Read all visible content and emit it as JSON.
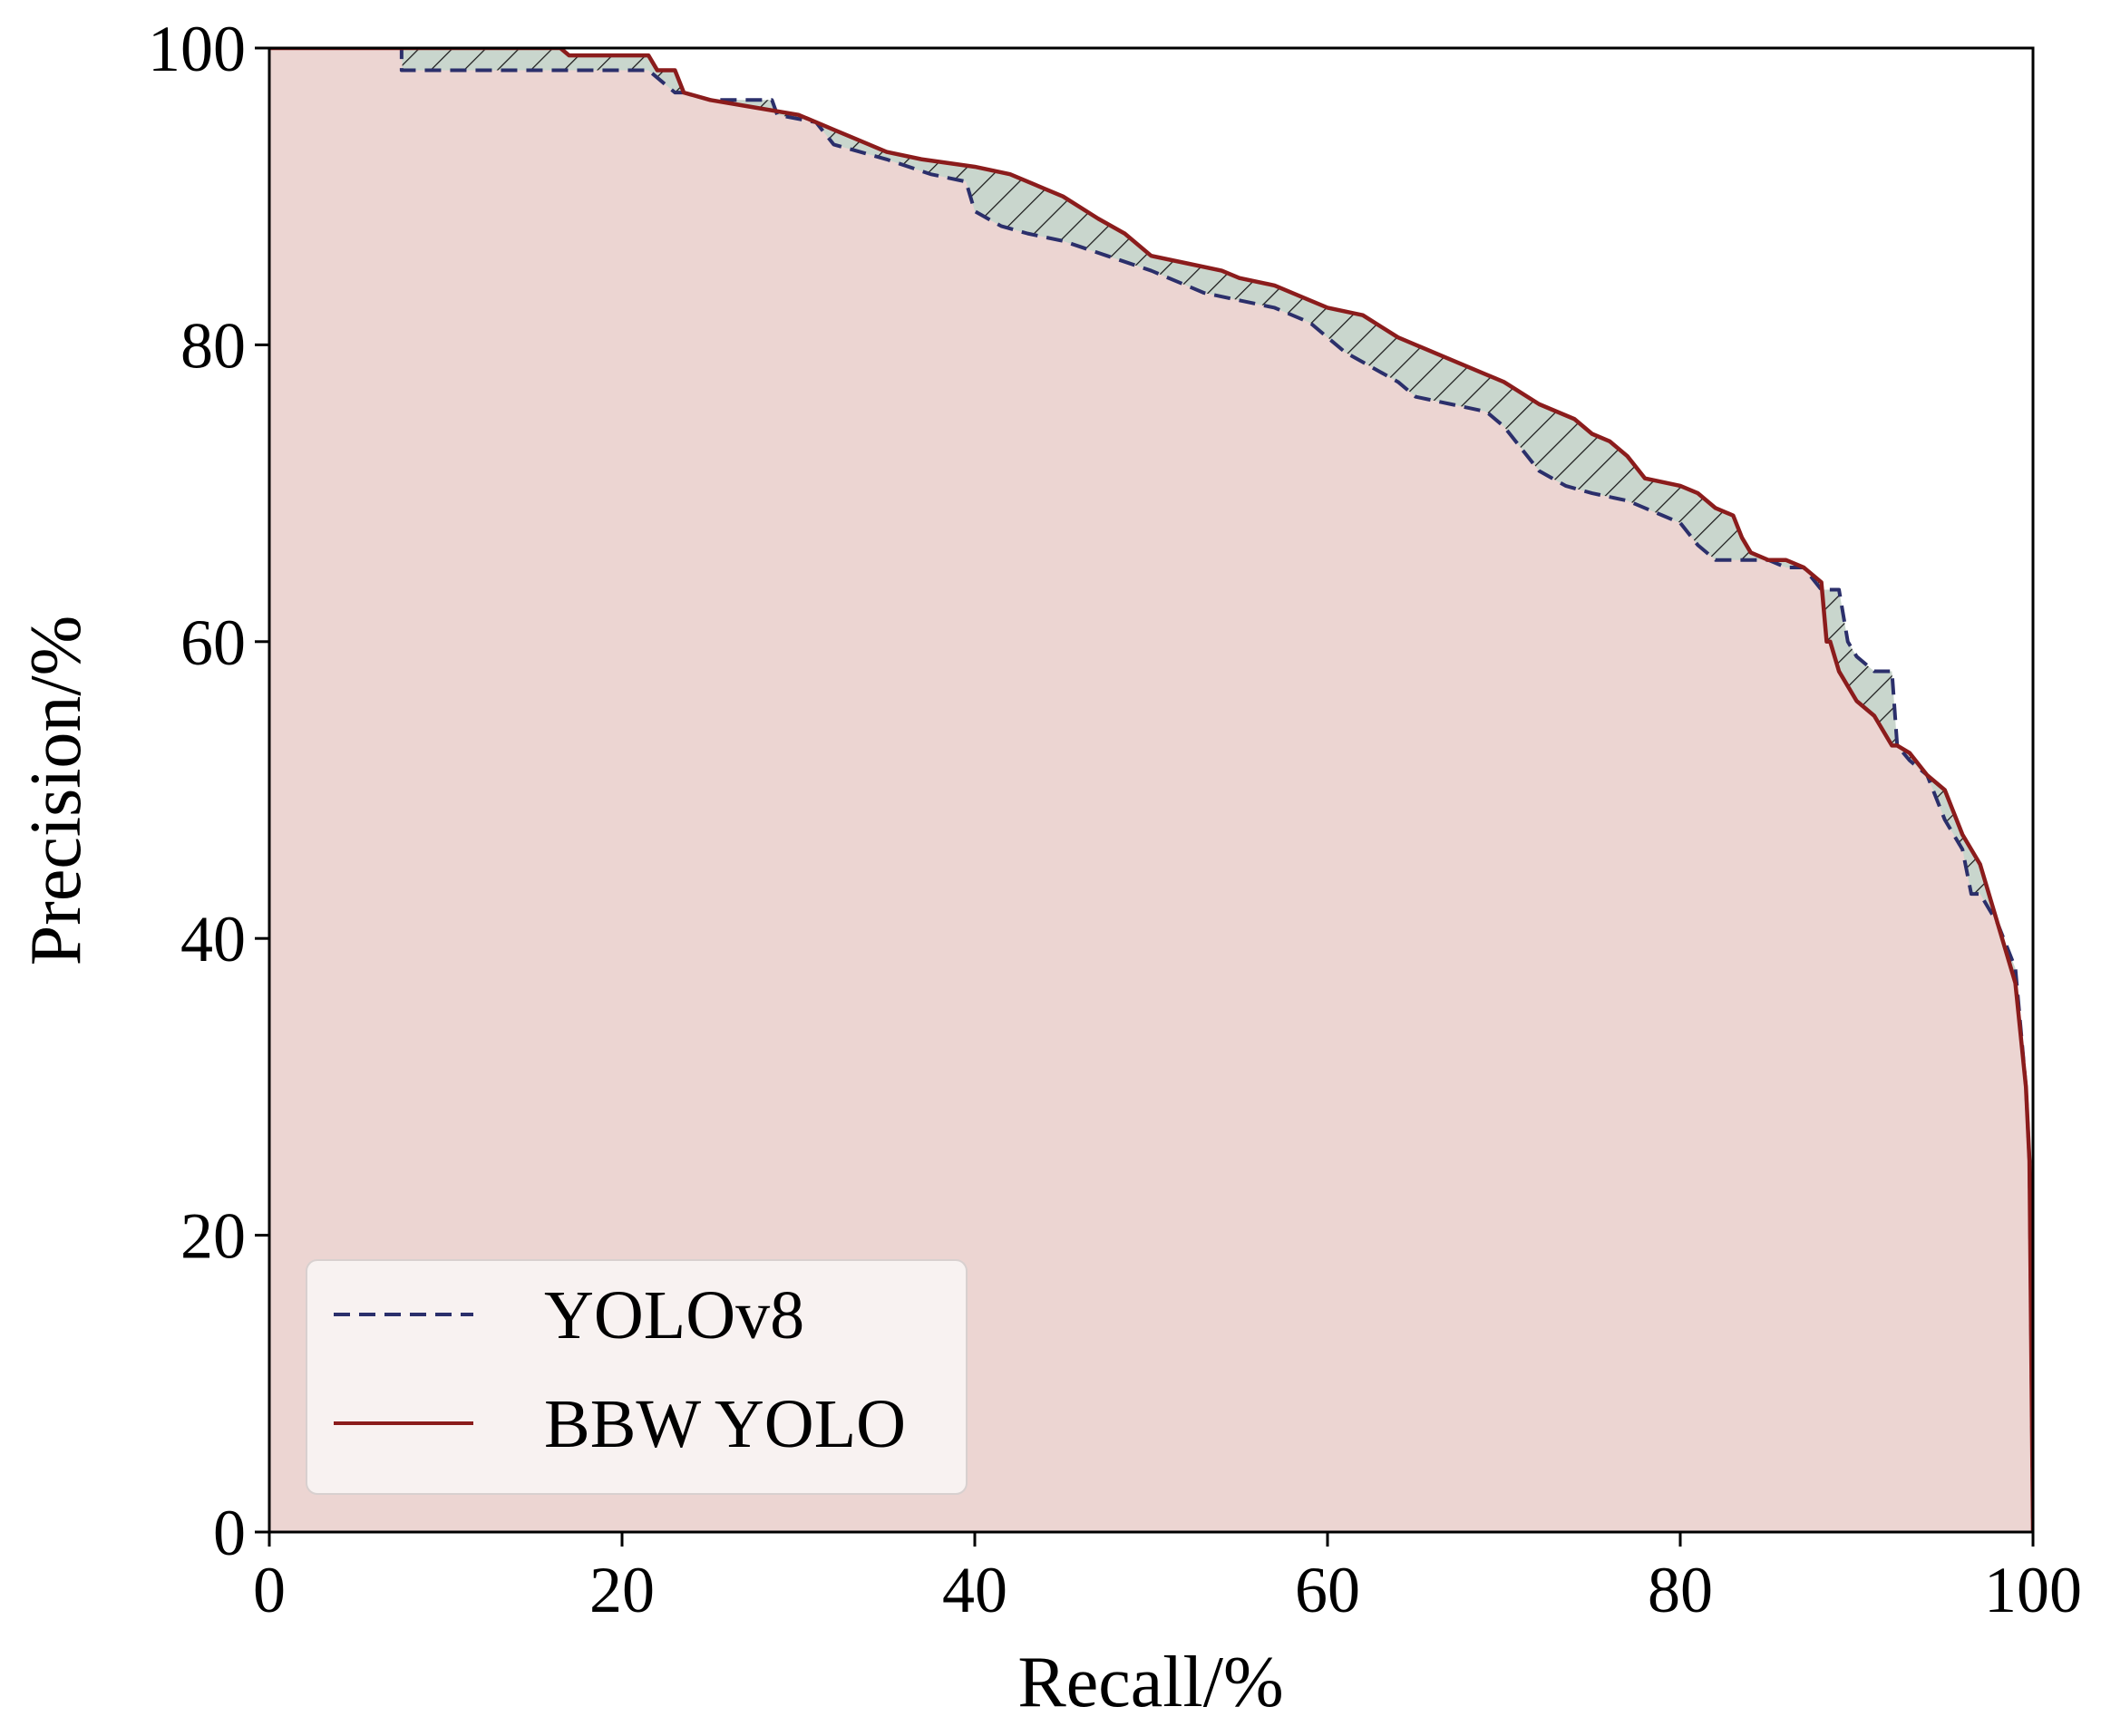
{
  "chart_data": {
    "type": "line",
    "xlabel": "Recall/%",
    "ylabel": "Precision/%",
    "xlim": [
      0,
      100
    ],
    "ylim": [
      0,
      100
    ],
    "xticks": [
      0,
      20,
      40,
      60,
      80,
      100
    ],
    "yticks": [
      0,
      20,
      40,
      60,
      80,
      100
    ],
    "grid": false,
    "legend_position": "lower-left",
    "series": [
      {
        "name": "YOLOv8",
        "style": "dashed",
        "color": "#2b2f6b",
        "x": [
          0,
          7.5,
          7.5,
          10,
          12,
          15,
          17,
          20,
          21.5,
          23,
          23.5,
          25,
          27,
          28.5,
          28.8,
          31,
          32,
          35,
          37.5,
          39.5,
          40,
          41.5,
          43,
          45,
          47.5,
          50,
          52,
          53,
          55,
          57,
          59,
          60,
          61,
          62.5,
          64,
          65,
          67,
          69,
          70,
          71,
          72,
          73.5,
          75,
          77,
          79,
          80,
          81,
          82,
          83,
          84,
          85,
          86,
          87,
          88,
          88.5,
          89,
          89.5,
          90,
          91,
          92,
          92.3,
          93,
          94,
          95,
          96,
          96.5,
          97,
          98,
          99,
          99.6,
          99.8,
          100
        ],
        "y": [
          100,
          100,
          98.5,
          98.5,
          98.5,
          98.5,
          98.5,
          98.5,
          98.5,
          97,
          97,
          96.5,
          96.5,
          96.5,
          95.5,
          95,
          93.5,
          92.5,
          91.5,
          91,
          89,
          88,
          87.5,
          87,
          86,
          85,
          84,
          83.5,
          83,
          82.5,
          81.5,
          80.5,
          79.5,
          78.5,
          77.5,
          76.5,
          76,
          75.5,
          74.5,
          73,
          71.5,
          70.5,
          70,
          69.5,
          68.5,
          68,
          66.5,
          65.5,
          65.5,
          65.5,
          65.5,
          65,
          65,
          63.5,
          63.5,
          63.5,
          60,
          59,
          58,
          58,
          53,
          52,
          51,
          48,
          46,
          43,
          43,
          41,
          38,
          30,
          25,
          0
        ]
      },
      {
        "name": "BBW YOLO",
        "style": "solid",
        "color": "#8b1c1c",
        "x": [
          0,
          5,
          10,
          15,
          16.5,
          17,
          20,
          21.5,
          22,
          23,
          23.5,
          25,
          27.5,
          30,
          31,
          32,
          33,
          35,
          37,
          40,
          42,
          44,
          45,
          47,
          48.5,
          50,
          52,
          54,
          55,
          57,
          59,
          60,
          62,
          64,
          65,
          67,
          69,
          70,
          72,
          74,
          75,
          76,
          77,
          78,
          80,
          81,
          82,
          83,
          83.5,
          84,
          85,
          86,
          87,
          88,
          88.3,
          88.5,
          89,
          90,
          91,
          92,
          92.3,
          93,
          94,
          95,
          96,
          96.5,
          97,
          98,
          99,
          99.6,
          99.8,
          100
        ],
        "y": [
          100,
          100,
          100,
          100,
          100,
          99.5,
          99.5,
          99.5,
          98.5,
          98.5,
          97,
          96.5,
          96,
          95.5,
          95,
          94.5,
          94,
          93,
          92.5,
          92,
          91.5,
          90.5,
          90,
          88.5,
          87.5,
          86,
          85.5,
          85,
          84.5,
          84,
          83,
          82.5,
          82,
          80.5,
          80,
          79,
          78,
          77.5,
          76,
          75,
          74,
          73.5,
          72.5,
          71,
          70.5,
          70,
          69,
          68.5,
          67,
          66,
          65.5,
          65.5,
          65,
          64,
          60,
          60,
          58,
          56,
          55,
          53,
          53,
          52.5,
          51,
          50,
          47,
          46,
          45,
          41,
          37,
          30,
          25,
          0
        ]
      }
    ]
  },
  "colors": {
    "area_fill": "#ecd5d2",
    "diff_fill": "#c9d6cd",
    "hatch": "#1a1a1a",
    "legend_bg": "#f8f2f1"
  }
}
